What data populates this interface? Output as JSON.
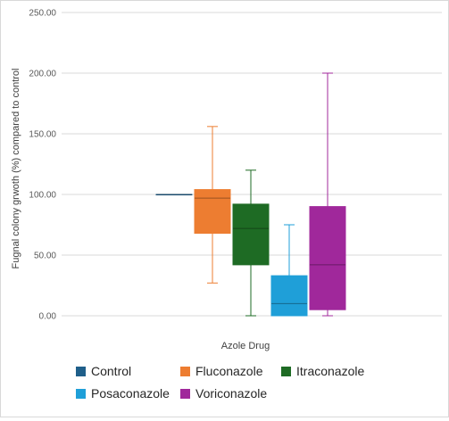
{
  "chart_data": {
    "type": "box",
    "title": "",
    "xlabel": "Azole Drug",
    "ylabel": "Fugnal colony grwoth (%) compared to control",
    "ylim": [
      0,
      250
    ],
    "yticks": [
      "0.00",
      "50.00",
      "100.00",
      "150.00",
      "200.00",
      "250.00"
    ],
    "grid": true,
    "legend_position": "bottom",
    "series": [
      {
        "name": "Control",
        "color": "#1f5f8a",
        "min": 100,
        "q1": 100,
        "median": 100,
        "q3": 100,
        "max": 100
      },
      {
        "name": "Fluconazole",
        "color": "#ed7d31",
        "min": 27,
        "q1": 68,
        "median": 97,
        "q3": 104,
        "max": 156
      },
      {
        "name": "Itraconazole",
        "color": "#1e6b24",
        "min": 0,
        "q1": 42,
        "median": 72,
        "q3": 92,
        "max": 120
      },
      {
        "name": "Posaconazole",
        "color": "#1f9fd8",
        "min": 0,
        "q1": 0,
        "median": 10,
        "q3": 33,
        "max": 75
      },
      {
        "name": "Voriconazole",
        "color": "#a0289b",
        "min": 0,
        "q1": 5,
        "median": 42,
        "q3": 90,
        "max": 200
      }
    ]
  }
}
